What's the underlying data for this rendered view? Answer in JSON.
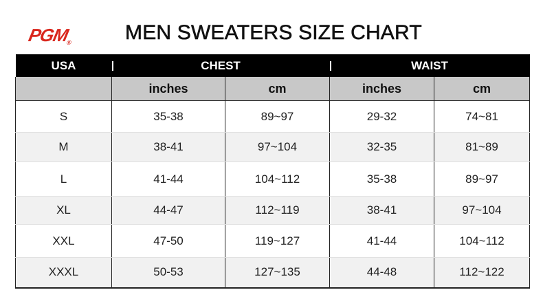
{
  "brand": {
    "logo_text": "PGM",
    "registered_mark": "®"
  },
  "title": "MEN SWEATERS  SIZE CHART",
  "headers": {
    "usa": "USA",
    "chest": "CHEST",
    "waist": "WAIST"
  },
  "subheaders": [
    "",
    "inches",
    "cm",
    "inches",
    "cm"
  ],
  "rows": [
    {
      "size": "S",
      "chest_in": "35-38",
      "chest_cm": "89~97",
      "waist_in": "29-32",
      "waist_cm": "74~81"
    },
    {
      "size": "M",
      "chest_in": "38-41",
      "chest_cm": "97~104",
      "waist_in": "32-35",
      "waist_cm": "81~89"
    },
    {
      "size": "L",
      "chest_in": "41-44",
      "chest_cm": "104~112",
      "waist_in": "35-38",
      "waist_cm": "89~97"
    },
    {
      "size": "XL",
      "chest_in": "44-47",
      "chest_cm": "112~119",
      "waist_in": "38-41",
      "waist_cm": "97~104"
    },
    {
      "size": "XXL",
      "chest_in": "47-50",
      "chest_cm": "119~127",
      "waist_in": "41-44",
      "waist_cm": "104~112"
    },
    {
      "size": "XXXL",
      "chest_in": "50-53",
      "chest_cm": "127~135",
      "waist_in": "44-48",
      "waist_cm": "112~122"
    }
  ],
  "colors": {
    "logo": "#d9261c",
    "header_bg": "#000000",
    "subheader_bg": "#c8c8c8"
  }
}
